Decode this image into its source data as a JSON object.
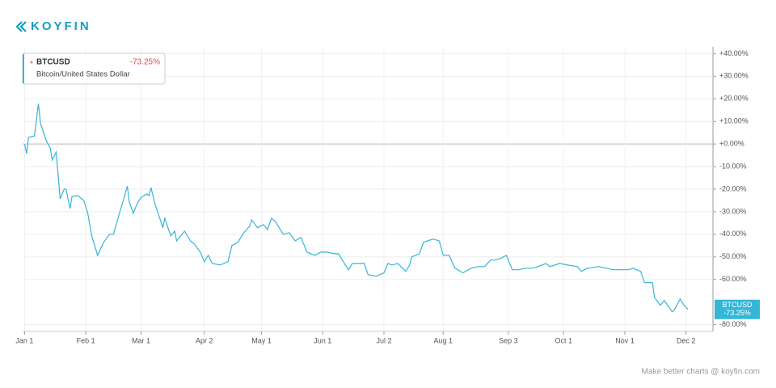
{
  "brand": "KOYFIN",
  "footer": "Make better charts @ koyfin.com",
  "chart_data": {
    "type": "line",
    "legend": {
      "symbol": "BTCUSD",
      "change": "-73.25%",
      "description": "Bitcoin/United States Dollar"
    },
    "series": [
      {
        "name": "BTCUSD",
        "color": "#35b6d6",
        "last_label": "-73.25%",
        "x": [
          0,
          1,
          2,
          5,
          7,
          8,
          11,
          13,
          14,
          16,
          18,
          20,
          21,
          23,
          24,
          27,
          30,
          32,
          34,
          37,
          40,
          43,
          45,
          48,
          50,
          52,
          53,
          55,
          57,
          59,
          62,
          63,
          64,
          66,
          69,
          70,
          71,
          74,
          76,
          77,
          81,
          84,
          86,
          89,
          91,
          93,
          95,
          99,
          103,
          105,
          108,
          111,
          114,
          115,
          118,
          121,
          123,
          125,
          127,
          131,
          134,
          137,
          140,
          143,
          147,
          150,
          153,
          157,
          159,
          162,
          164,
          166,
          172,
          174,
          178,
          182,
          184,
          186,
          189,
          193,
          195,
          196,
          200,
          202,
          204,
          207,
          210,
          212,
          215,
          218,
          222,
          226,
          230,
          233,
          236,
          238,
          241,
          244,
          247,
          250,
          254,
          257,
          260,
          264,
          266,
          271,
          275,
          280,
          282,
          285,
          291,
          298,
          306,
          308,
          312,
          314,
          318,
          319,
          322,
          324,
          328,
          329,
          332,
          334,
          336
        ],
        "values": [
          0,
          -4.3,
          2.9,
          3.6,
          17.9,
          9.3,
          1.4,
          -1.8,
          -7.1,
          -3.6,
          -24.3,
          -20,
          -20,
          -28.6,
          -23.2,
          -22.9,
          -25,
          -30.7,
          -40.7,
          -49.3,
          -43.6,
          -40,
          -40,
          -30.7,
          -25,
          -18.6,
          -25.7,
          -30.7,
          -26.4,
          -23.6,
          -22.1,
          -22.9,
          -19.3,
          -26.4,
          -34.3,
          -37.1,
          -32.9,
          -40.7,
          -38.6,
          -42.9,
          -38.6,
          -42.9,
          -44.3,
          -47.9,
          -52.1,
          -49.3,
          -52.9,
          -53.6,
          -52.1,
          -45,
          -43.6,
          -39.3,
          -36.4,
          -33.6,
          -37.1,
          -35.7,
          -37.9,
          -32.9,
          -34.3,
          -40,
          -39.3,
          -42.9,
          -41.4,
          -47.9,
          -49.3,
          -47.9,
          -47.9,
          -48.6,
          -48.6,
          -52.9,
          -55.7,
          -52.9,
          -52.9,
          -57.9,
          -58.6,
          -57.1,
          -52.9,
          -53.6,
          -52.9,
          -56.4,
          -53.6,
          -50,
          -48.6,
          -43.6,
          -42.9,
          -42.1,
          -42.9,
          -49.3,
          -49.3,
          -55,
          -57.1,
          -55,
          -54.3,
          -54.3,
          -51.4,
          -51.4,
          -50.7,
          -49.3,
          -55.7,
          -55.7,
          -55,
          -55,
          -54.3,
          -52.9,
          -54.3,
          -52.9,
          -53.6,
          -54.3,
          -56.4,
          -55,
          -54.3,
          -55.7,
          -55.7,
          -55,
          -56.4,
          -61.4,
          -61.4,
          -67.9,
          -71.4,
          -69.3,
          -74.3,
          -73.6,
          -68.6,
          -71.4,
          -73.25
        ]
      }
    ],
    "xlim": [
      -1,
      347
    ],
    "xticks": [
      {
        "value": 0,
        "label": "Jan 1"
      },
      {
        "value": 31,
        "label": "Feb 1"
      },
      {
        "value": 59,
        "label": "Mar 1"
      },
      {
        "value": 91,
        "label": "Apr 2"
      },
      {
        "value": 120,
        "label": "May 1"
      },
      {
        "value": 151,
        "label": "Jun 1"
      },
      {
        "value": 182,
        "label": "Jul 2"
      },
      {
        "value": 212,
        "label": "Aug 1"
      },
      {
        "value": 245,
        "label": "Sep 3"
      },
      {
        "value": 273,
        "label": "Oct 1"
      },
      {
        "value": 304,
        "label": "Nov 1"
      },
      {
        "value": 335,
        "label": "Dec 2"
      }
    ],
    "ylim": [
      -83,
      43
    ],
    "yticks": [
      {
        "value": 40,
        "label": "+40.00%"
      },
      {
        "value": 30,
        "label": "+30.00%"
      },
      {
        "value": 20,
        "label": "+20.00%"
      },
      {
        "value": 10,
        "label": "+10.00%"
      },
      {
        "value": 0,
        "label": "+0.00%"
      },
      {
        "value": -10,
        "label": "-10.00%"
      },
      {
        "value": -20,
        "label": "-20.00%"
      },
      {
        "value": -30,
        "label": "-30.00%"
      },
      {
        "value": -40,
        "label": "-40.00%"
      },
      {
        "value": -50,
        "label": "-50.00%"
      },
      {
        "value": -60,
        "label": "-60.00%"
      },
      {
        "value": -80,
        "label": "-80.00%"
      }
    ],
    "grid": true
  }
}
